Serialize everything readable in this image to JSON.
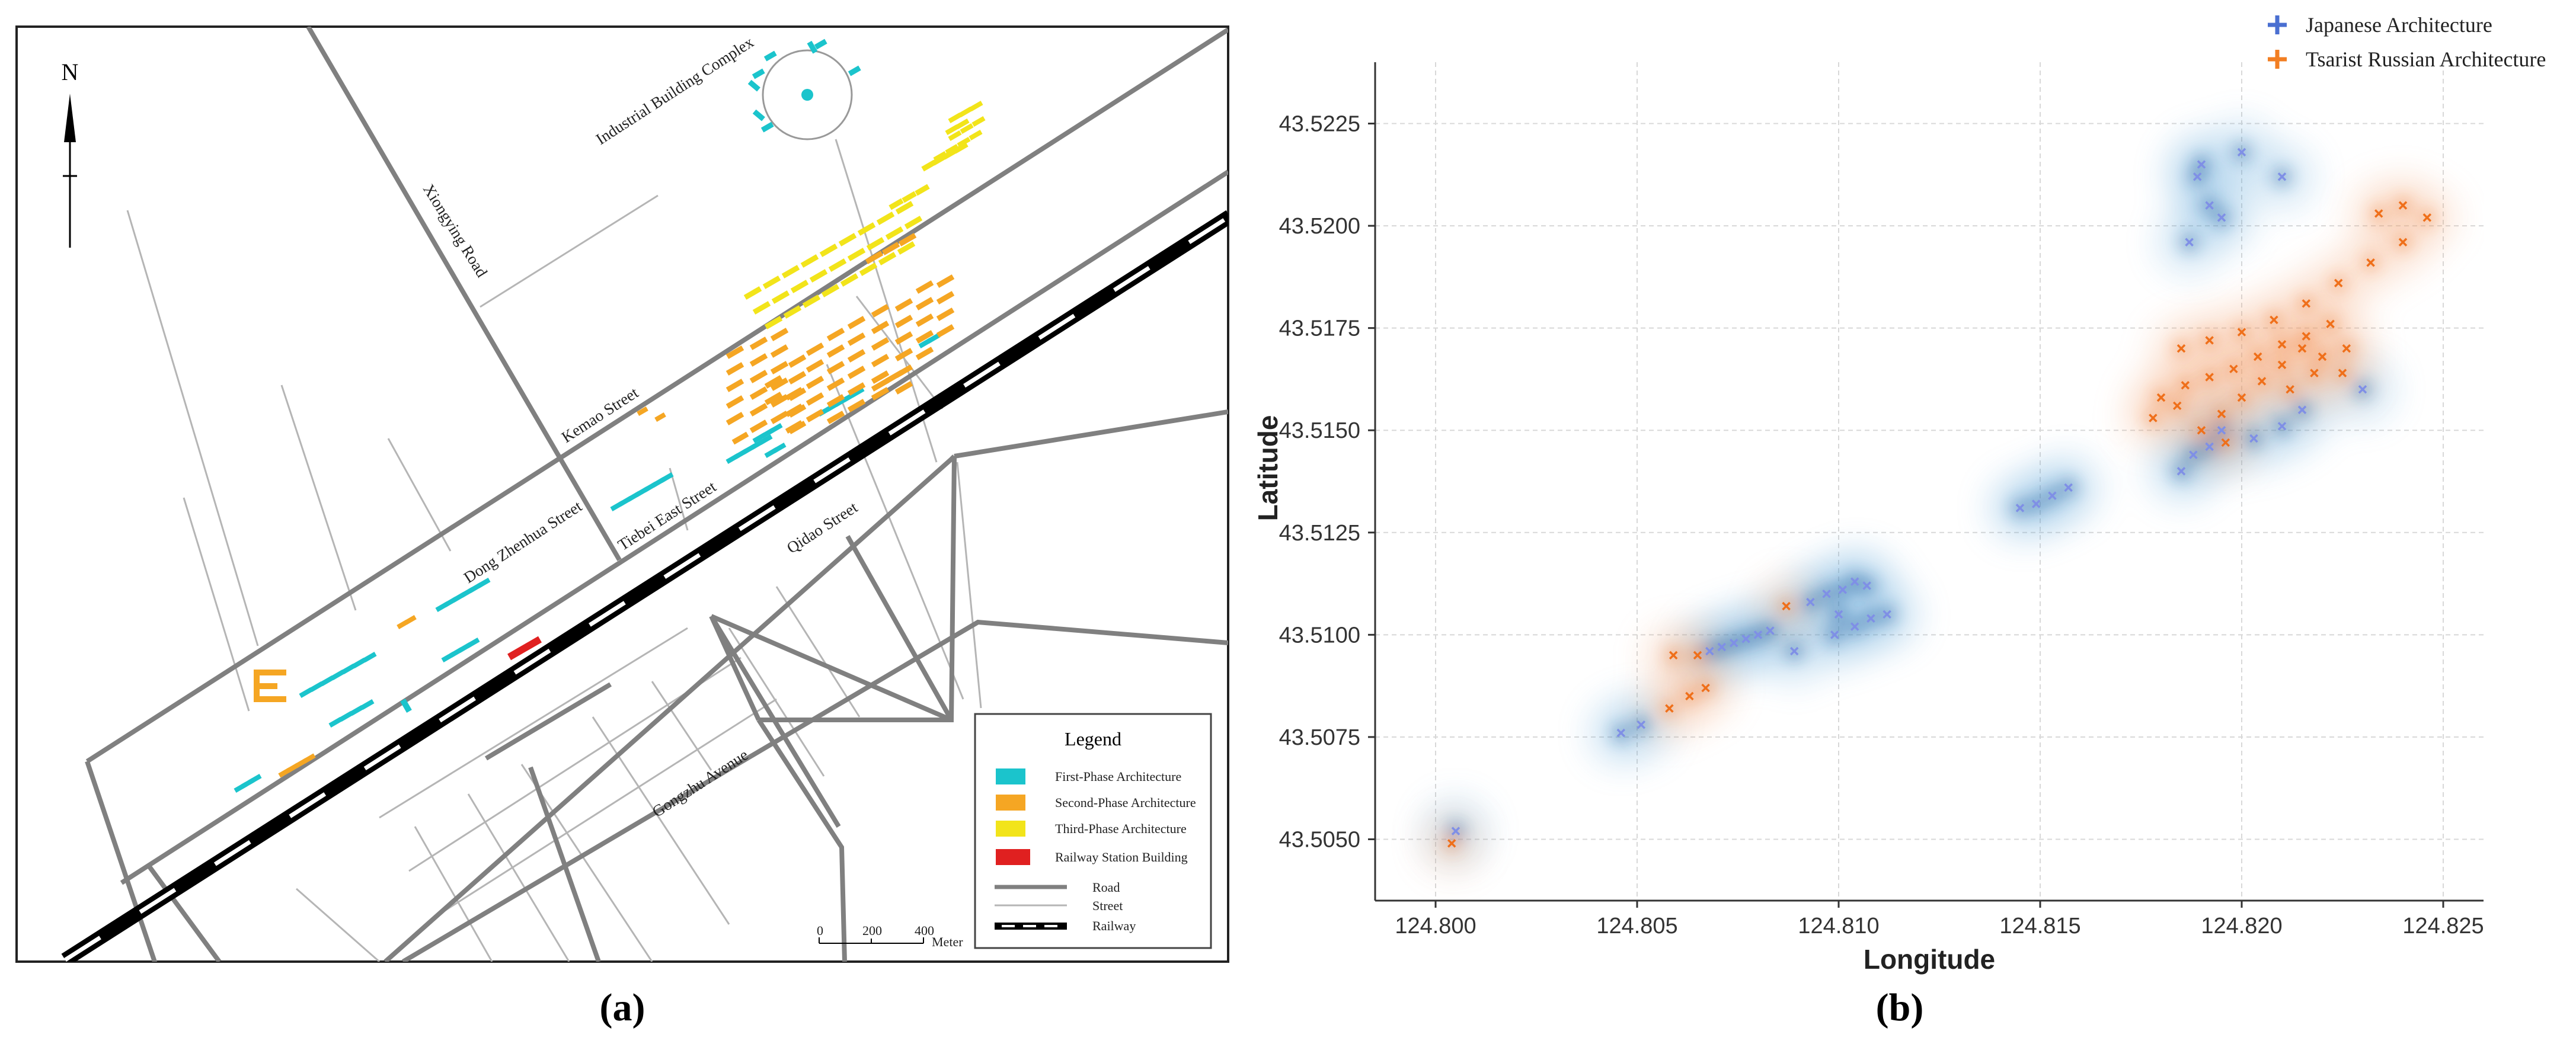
{
  "panel_a": {
    "caption": "(a)",
    "north": "N",
    "streets": {
      "industrial": "Industrial Building Complex",
      "xiongying": "Xiongying Road",
      "kemao": "Kemao Street",
      "dongzhenhua": "Dong Zhenhua Street",
      "tiebei": "Tiebei East Street",
      "qidao": "Qidao Street",
      "gongzhu": "Gongzhu Avenue"
    },
    "legend": {
      "title": "Legend",
      "first": "First-Phase Architecture",
      "second": "Second-Phase Architecture",
      "third": "Third-Phase Architecture",
      "station": "Railway Station Building",
      "road": "Road",
      "street": "Street",
      "railway": "Railway"
    },
    "scale": {
      "zero": "0",
      "mid": "200",
      "max": "400",
      "unit": "Meter"
    },
    "colors": {
      "first": "#1bc4cc",
      "second": "#f5a623",
      "third": "#f2e41a",
      "station": "#e02020"
    }
  },
  "chart_data": {
    "type": "scatter",
    "caption": "(b)",
    "xlabel": "Longitude",
    "ylabel": "Latitude",
    "xlim": [
      124.7985,
      124.826
    ],
    "ylim": [
      43.5035,
      43.524
    ],
    "xticks": [
      "124.800",
      "124.805",
      "124.810",
      "124.815",
      "124.820",
      "124.825"
    ],
    "yticks": [
      "43.5050",
      "43.5075",
      "43.5100",
      "43.5125",
      "43.5150",
      "43.5175",
      "43.5200",
      "43.5225"
    ],
    "legend": [
      "Japanese Architecture",
      "Tsarist Russian Architecture"
    ],
    "colors": [
      "#4a6fd1",
      "#f27e22"
    ],
    "series": [
      {
        "name": "Japanese Architecture",
        "points": [
          [
            124.8005,
            43.5052
          ],
          [
            124.8046,
            43.5076
          ],
          [
            124.8051,
            43.5078
          ],
          [
            124.8068,
            43.5096
          ],
          [
            124.8071,
            43.5097
          ],
          [
            124.8074,
            43.5098
          ],
          [
            124.8077,
            43.5099
          ],
          [
            124.808,
            43.51
          ],
          [
            124.8083,
            43.5101
          ],
          [
            124.8089,
            43.5096
          ],
          [
            124.8093,
            43.5108
          ],
          [
            124.8097,
            43.511
          ],
          [
            124.8101,
            43.5111
          ],
          [
            124.8104,
            43.5113
          ],
          [
            124.8107,
            43.5112
          ],
          [
            124.81,
            43.5105
          ],
          [
            124.8104,
            43.5102
          ],
          [
            124.8108,
            43.5104
          ],
          [
            124.8112,
            43.5105
          ],
          [
            124.8099,
            43.51
          ],
          [
            124.8145,
            43.5131
          ],
          [
            124.8149,
            43.5132
          ],
          [
            124.8153,
            43.5134
          ],
          [
            124.8157,
            43.5136
          ],
          [
            124.8185,
            43.514
          ],
          [
            124.8188,
            43.5144
          ],
          [
            124.8192,
            43.5146
          ],
          [
            124.8195,
            43.515
          ],
          [
            124.8203,
            43.5148
          ],
          [
            124.821,
            43.5151
          ],
          [
            124.8215,
            43.5155
          ],
          [
            124.823,
            43.516
          ],
          [
            124.8189,
            43.5212
          ],
          [
            124.8192,
            43.5205
          ],
          [
            124.8195,
            43.5202
          ],
          [
            124.82,
            43.5218
          ],
          [
            124.819,
            43.5215
          ],
          [
            124.821,
            43.5212
          ],
          [
            124.8187,
            43.5196
          ]
        ]
      },
      {
        "name": "Tsarist Russian Architecture",
        "points": [
          [
            124.8004,
            43.5049
          ],
          [
            124.8058,
            43.5082
          ],
          [
            124.8063,
            43.5085
          ],
          [
            124.8067,
            43.5087
          ],
          [
            124.8059,
            43.5095
          ],
          [
            124.8065,
            43.5095
          ],
          [
            124.8087,
            43.5107
          ],
          [
            124.8185,
            43.517
          ],
          [
            124.8192,
            43.5172
          ],
          [
            124.82,
            43.5174
          ],
          [
            124.8208,
            43.5177
          ],
          [
            124.8216,
            43.5181
          ],
          [
            124.8224,
            43.5186
          ],
          [
            124.8232,
            43.5191
          ],
          [
            124.824,
            43.5196
          ],
          [
            124.8246,
            43.5202
          ],
          [
            124.8234,
            43.5203
          ],
          [
            124.824,
            43.5205
          ],
          [
            124.818,
            43.5158
          ],
          [
            124.8186,
            43.5161
          ],
          [
            124.8192,
            43.5163
          ],
          [
            124.8198,
            43.5165
          ],
          [
            124.8204,
            43.5168
          ],
          [
            124.821,
            43.5171
          ],
          [
            124.8216,
            43.5173
          ],
          [
            124.8222,
            43.5176
          ],
          [
            124.819,
            43.515
          ],
          [
            124.8195,
            43.5154
          ],
          [
            124.82,
            43.5158
          ],
          [
            124.8205,
            43.5162
          ],
          [
            124.821,
            43.5166
          ],
          [
            124.8215,
            43.517
          ],
          [
            124.822,
            43.5168
          ],
          [
            124.8225,
            43.5164
          ],
          [
            124.8178,
            43.5153
          ],
          [
            124.8184,
            43.5156
          ],
          [
            124.8196,
            43.5147
          ],
          [
            124.8212,
            43.516
          ],
          [
            124.8218,
            43.5164
          ],
          [
            124.8226,
            43.517
          ]
        ]
      }
    ]
  }
}
